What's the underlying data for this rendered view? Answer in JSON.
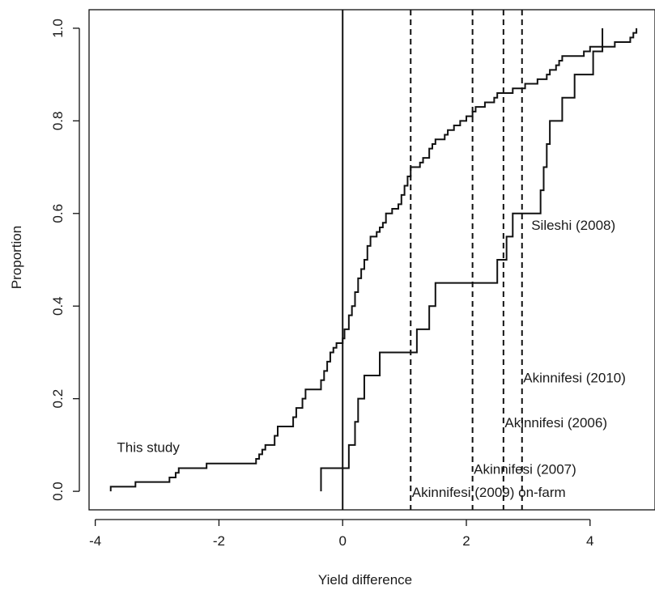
{
  "chart_data": {
    "type": "line",
    "xlabel": "Yield difference",
    "ylabel": "Proportion",
    "xlim": [
      -4.1,
      5.05
    ],
    "ylim": [
      -0.04,
      1.04
    ],
    "x_ticks": [
      -4,
      -2,
      0,
      2,
      4
    ],
    "x_tick_labels": [
      "-4",
      "-2",
      "0",
      "2",
      "4"
    ],
    "y_ticks": [
      0,
      0.2,
      0.4,
      0.6,
      0.8,
      1.0
    ],
    "y_tick_labels": [
      "0.0",
      "0.2",
      "0.4",
      "0.6",
      "0.8",
      "1.0"
    ],
    "grid": false,
    "series": [
      {
        "name": "This study",
        "step": true,
        "points": [
          [
            -3.75,
            0.0
          ],
          [
            -3.75,
            0.01
          ],
          [
            -3.35,
            0.02
          ],
          [
            -2.8,
            0.03
          ],
          [
            -2.7,
            0.04
          ],
          [
            -2.65,
            0.05
          ],
          [
            -2.2,
            0.06
          ],
          [
            -1.4,
            0.07
          ],
          [
            -1.35,
            0.08
          ],
          [
            -1.3,
            0.09
          ],
          [
            -1.25,
            0.1
          ],
          [
            -1.1,
            0.12
          ],
          [
            -1.05,
            0.14
          ],
          [
            -0.8,
            0.16
          ],
          [
            -0.75,
            0.18
          ],
          [
            -0.65,
            0.2
          ],
          [
            -0.6,
            0.22
          ],
          [
            -0.35,
            0.24
          ],
          [
            -0.3,
            0.26
          ],
          [
            -0.25,
            0.28
          ],
          [
            -0.2,
            0.3
          ],
          [
            -0.15,
            0.31
          ],
          [
            -0.1,
            0.32
          ],
          [
            0.0,
            0.33
          ],
          [
            0.03,
            0.35
          ],
          [
            0.1,
            0.38
          ],
          [
            0.15,
            0.4
          ],
          [
            0.2,
            0.43
          ],
          [
            0.25,
            0.46
          ],
          [
            0.3,
            0.48
          ],
          [
            0.35,
            0.5
          ],
          [
            0.4,
            0.53
          ],
          [
            0.45,
            0.55
          ],
          [
            0.55,
            0.56
          ],
          [
            0.6,
            0.57
          ],
          [
            0.65,
            0.58
          ],
          [
            0.7,
            0.6
          ],
          [
            0.8,
            0.61
          ],
          [
            0.9,
            0.62
          ],
          [
            0.95,
            0.64
          ],
          [
            1.0,
            0.66
          ],
          [
            1.05,
            0.68
          ],
          [
            1.1,
            0.7
          ],
          [
            1.25,
            0.71
          ],
          [
            1.3,
            0.72
          ],
          [
            1.4,
            0.74
          ],
          [
            1.45,
            0.75
          ],
          [
            1.5,
            0.76
          ],
          [
            1.65,
            0.77
          ],
          [
            1.7,
            0.78
          ],
          [
            1.8,
            0.79
          ],
          [
            1.9,
            0.8
          ],
          [
            2.0,
            0.81
          ],
          [
            2.1,
            0.82
          ],
          [
            2.15,
            0.83
          ],
          [
            2.3,
            0.84
          ],
          [
            2.45,
            0.85
          ],
          [
            2.5,
            0.86
          ],
          [
            2.75,
            0.87
          ],
          [
            2.95,
            0.88
          ],
          [
            3.15,
            0.89
          ],
          [
            3.3,
            0.9
          ],
          [
            3.35,
            0.91
          ],
          [
            3.45,
            0.92
          ],
          [
            3.5,
            0.93
          ],
          [
            3.55,
            0.94
          ],
          [
            3.9,
            0.95
          ],
          [
            4.0,
            0.96
          ],
          [
            4.4,
            0.97
          ],
          [
            4.65,
            0.98
          ],
          [
            4.7,
            0.99
          ],
          [
            4.75,
            1.0
          ]
        ]
      },
      {
        "name": "Sileshi (2008)",
        "step": true,
        "points": [
          [
            -0.35,
            0.0
          ],
          [
            -0.35,
            0.05
          ],
          [
            0.1,
            0.1
          ],
          [
            0.2,
            0.15
          ],
          [
            0.25,
            0.2
          ],
          [
            0.35,
            0.25
          ],
          [
            0.6,
            0.3
          ],
          [
            1.2,
            0.35
          ],
          [
            1.4,
            0.4
          ],
          [
            1.5,
            0.45
          ],
          [
            2.5,
            0.5
          ],
          [
            2.65,
            0.55
          ],
          [
            2.75,
            0.6
          ],
          [
            3.2,
            0.65
          ],
          [
            3.25,
            0.7
          ],
          [
            3.3,
            0.75
          ],
          [
            3.35,
            0.8
          ],
          [
            3.55,
            0.85
          ],
          [
            3.75,
            0.9
          ],
          [
            4.05,
            0.95
          ],
          [
            4.2,
            1.0
          ]
        ]
      }
    ],
    "reference_lines": [
      {
        "x": 0,
        "style": "solid"
      },
      {
        "x": 1.1,
        "style": "dashed",
        "label": "Akinnifesi (2009) on-farm"
      },
      {
        "x": 2.1,
        "style": "dashed",
        "label": "Akinnifesi (2007)"
      },
      {
        "x": 2.6,
        "style": "dashed",
        "label": "Akinnifesi (2006)"
      },
      {
        "x": 2.9,
        "style": "dashed",
        "label": "Akinnifesi (2010)"
      }
    ],
    "annotations": [
      {
        "text": "This study",
        "x": -3.65,
        "y": 0.085
      },
      {
        "text": "Sileshi (2008)",
        "x": 3.05,
        "y": 0.565
      },
      {
        "text": "Akinnifesi (2010)",
        "x": 2.92,
        "y": 0.235
      },
      {
        "text": "Akinnifesi (2006)",
        "x": 2.62,
        "y": 0.138
      },
      {
        "text": "Akinnifesi (2007)",
        "x": 2.12,
        "y": 0.038
      },
      {
        "text": "Akinnifesi (2009) on-farm",
        "x": 1.12,
        "y": -0.012
      }
    ]
  }
}
